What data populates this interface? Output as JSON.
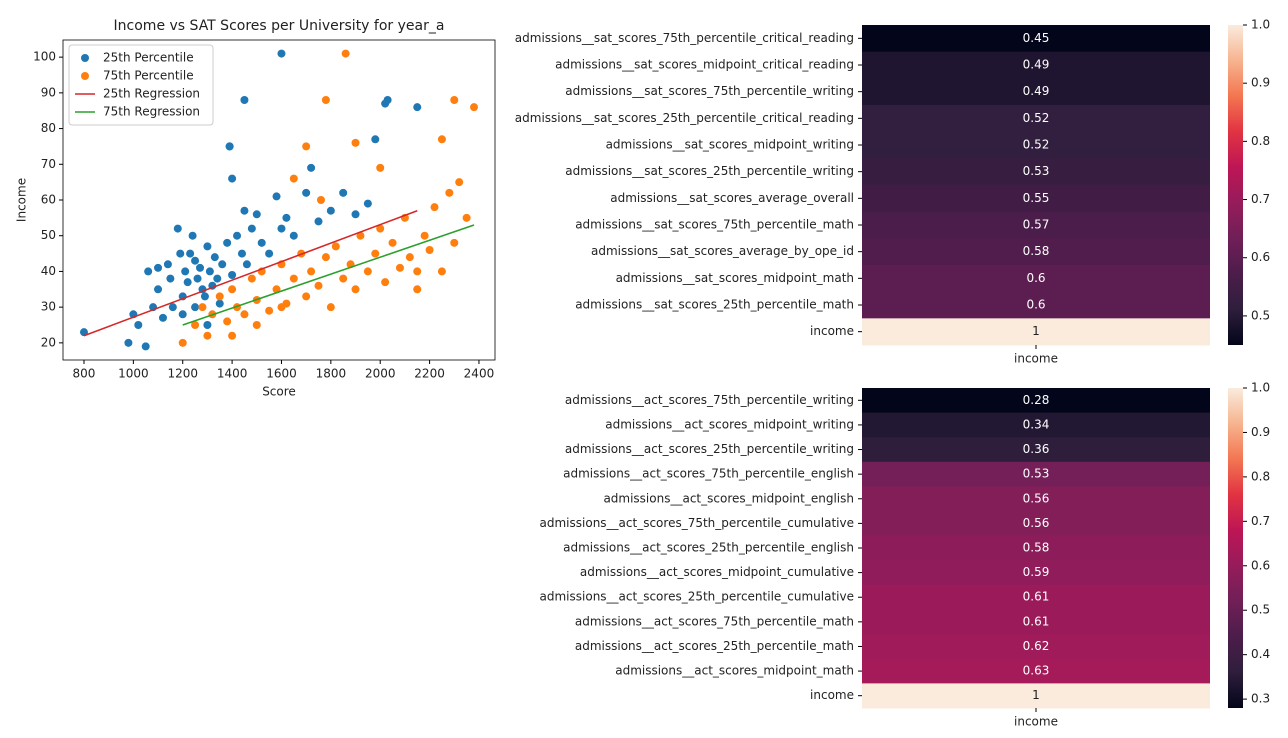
{
  "chart_data": [
    {
      "type": "scatter",
      "title": "Income vs SAT Scores per University for year_a",
      "x_label": "Score",
      "y_label": "Income",
      "xlim": [
        715,
        2465
      ],
      "xticks": [
        800,
        1000,
        1200,
        1400,
        1600,
        1800,
        2000,
        2200,
        2400
      ],
      "ylim": [
        15.2,
        104.8
      ],
      "yticks": [
        20,
        30,
        40,
        50,
        60,
        70,
        80,
        90,
        100
      ],
      "legend": "upper left",
      "grid": false,
      "series": [
        {
          "name": "25th Percentile",
          "kind": "points",
          "color": "#1f77b4",
          "x": [
            800,
            980,
            1000,
            1020,
            1050,
            1060,
            1080,
            1100,
            1100,
            1120,
            1140,
            1150,
            1160,
            1180,
            1190,
            1200,
            1200,
            1210,
            1220,
            1230,
            1240,
            1250,
            1250,
            1260,
            1270,
            1280,
            1290,
            1300,
            1300,
            1310,
            1320,
            1330,
            1340,
            1350,
            1360,
            1380,
            1390,
            1400,
            1400,
            1420,
            1440,
            1450,
            1460,
            1480,
            1500,
            1520,
            1550,
            1580,
            1600,
            1620,
            1650,
            1700,
            1720,
            1750,
            1800,
            1850,
            1900,
            1950,
            1980,
            2020,
            2030,
            2150,
            1600,
            1450,
            1390
          ],
          "values": [
            23,
            20,
            28,
            25,
            19,
            40,
            30,
            41,
            35,
            27,
            42,
            38,
            30,
            52,
            45,
            33,
            28,
            40,
            37,
            45,
            50,
            43,
            30,
            38,
            41,
            35,
            33,
            47,
            25,
            40,
            36,
            44,
            38,
            31,
            42,
            48,
            75,
            66,
            39,
            50,
            45,
            57,
            42,
            52,
            56,
            48,
            45,
            61,
            52,
            55,
            50,
            62,
            69,
            54,
            57,
            62,
            56,
            59,
            77,
            87,
            88,
            86,
            101,
            88,
            75
          ]
        },
        {
          "name": "75th Percentile",
          "kind": "points",
          "color": "#ff7f0e",
          "x": [
            1200,
            1250,
            1280,
            1300,
            1320,
            1350,
            1380,
            1400,
            1420,
            1450,
            1480,
            1500,
            1520,
            1550,
            1580,
            1600,
            1620,
            1650,
            1680,
            1700,
            1720,
            1750,
            1780,
            1800,
            1820,
            1850,
            1880,
            1900,
            1920,
            1950,
            1980,
            2000,
            2020,
            2050,
            2080,
            2100,
            2120,
            2150,
            2180,
            2200,
            2220,
            2250,
            2280,
            2300,
            2320,
            2350,
            2380,
            1860,
            1780,
            1650,
            1700,
            1760,
            1900,
            2000,
            2150,
            2250,
            2300,
            1400,
            1500,
            1600
          ],
          "values": [
            20,
            25,
            30,
            22,
            28,
            33,
            26,
            35,
            30,
            28,
            38,
            32,
            40,
            29,
            35,
            42,
            31,
            38,
            45,
            33,
            40,
            36,
            44,
            30,
            47,
            38,
            42,
            35,
            50,
            40,
            45,
            52,
            37,
            48,
            41,
            55,
            44,
            35,
            50,
            46,
            58,
            40,
            62,
            48,
            65,
            55,
            86,
            101,
            88,
            66,
            75,
            60,
            76,
            69,
            40,
            77,
            88,
            22,
            25,
            30
          ]
        },
        {
          "name": "25th Regression",
          "kind": "line",
          "color": "#d62728",
          "x": [
            800,
            2150
          ],
          "values": [
            22,
            57
          ]
        },
        {
          "name": "75th Regression",
          "kind": "line",
          "color": "#2ca02c",
          "x": [
            1200,
            2380
          ],
          "values": [
            25,
            53
          ]
        }
      ]
    },
    {
      "type": "heatmap",
      "categories": [
        "admissions__sat_scores_75th_percentile_critical_reading",
        "admissions__sat_scores_midpoint_critical_reading",
        "admissions__sat_scores_75th_percentile_writing",
        "admissions__sat_scores_25th_percentile_critical_reading",
        "admissions__sat_scores_midpoint_writing",
        "admissions__sat_scores_25th_percentile_writing",
        "admissions__sat_scores_average_overall",
        "admissions__sat_scores_75th_percentile_math",
        "admissions__sat_scores_average_by_ope_id",
        "admissions__sat_scores_midpoint_math",
        "admissions__sat_scores_25th_percentile_math",
        "income"
      ],
      "columns": [
        "income"
      ],
      "values": [
        0.45,
        0.49,
        0.49,
        0.52,
        0.52,
        0.53,
        0.55,
        0.57,
        0.58,
        0.6,
        0.6,
        1
      ],
      "zlim": [
        0.45,
        1.0
      ],
      "zticks": [
        0.5,
        0.6,
        0.7,
        0.8,
        0.9,
        {
          "value": 1.0,
          "label": "1.0"
        }
      ],
      "colormap": [
        "#03051a",
        "#2e1e3c",
        "#4c1d4b",
        "#701f57",
        "#961c5b",
        "#bd1655",
        "#e13342",
        "#f37651",
        "#f6b48f",
        "#faebdd"
      ]
    },
    {
      "type": "heatmap",
      "categories": [
        "admissions__act_scores_75th_percentile_writing",
        "admissions__act_scores_midpoint_writing",
        "admissions__act_scores_25th_percentile_writing",
        "admissions__act_scores_75th_percentile_english",
        "admissions__act_scores_midpoint_english",
        "admissions__act_scores_75th_percentile_cumulative",
        "admissions__act_scores_25th_percentile_english",
        "admissions__act_scores_midpoint_cumulative",
        "admissions__act_scores_25th_percentile_cumulative",
        "admissions__act_scores_75th_percentile_math",
        "admissions__act_scores_25th_percentile_math",
        "admissions__act_scores_midpoint_math",
        "income"
      ],
      "columns": [
        "income"
      ],
      "values": [
        0.28,
        0.34,
        0.36,
        0.53,
        0.56,
        0.56,
        0.58,
        0.59,
        0.61,
        0.61,
        0.62,
        0.63,
        1
      ],
      "zlim": [
        0.28,
        1.0
      ],
      "zticks": [
        0.3,
        0.4,
        0.5,
        0.6,
        0.7,
        0.8,
        0.9,
        {
          "value": 1.0,
          "label": "1.0"
        }
      ],
      "colormap": [
        "#03051a",
        "#2e1e3c",
        "#4c1d4b",
        "#701f57",
        "#961c5b",
        "#bd1655",
        "#e13342",
        "#f37651",
        "#f6b48f",
        "#faebdd"
      ]
    }
  ]
}
